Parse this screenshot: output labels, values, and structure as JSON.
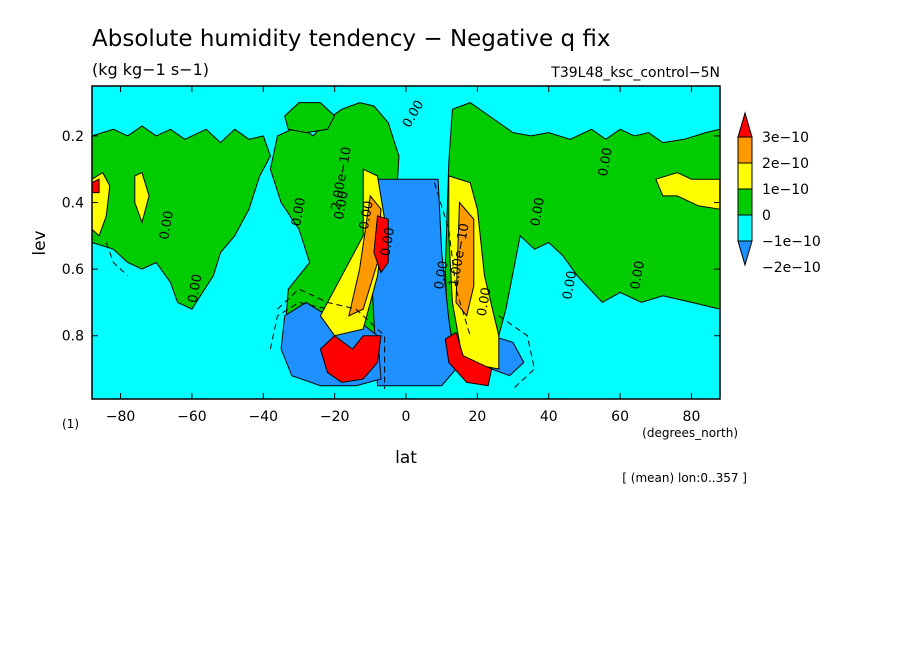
{
  "chart_data": {
    "type": "heatmap",
    "title": "Absolute humidity tendency − Negative q fix",
    "units": "(kg kg−1 s−1)",
    "run_label": "T39L48_ksc_control−5N",
    "xlabel": "lat",
    "xunits": "(degrees_north)",
    "ylabel": "lev",
    "yunits": "(1)",
    "footnote": "[ (mean) lon:0..357 ]",
    "xlim": [
      -88,
      88
    ],
    "ylim": [
      0.05,
      0.99
    ],
    "yaxis_inverted": true,
    "xticks": [
      -80,
      -60,
      -40,
      -20,
      0,
      20,
      40,
      60,
      80
    ],
    "xtick_labels": [
      "−80",
      "−60",
      "−40",
      "−20",
      "0",
      "20",
      "40",
      "60",
      "80"
    ],
    "yticks": [
      0.2,
      0.4,
      0.6,
      0.8
    ],
    "ytick_labels": [
      "0.2",
      "0.4",
      "0.6",
      "0.8"
    ],
    "colorbar": {
      "labels": [
        "3e−10",
        "2e−10",
        "1e−10",
        "0",
        "−1e−10",
        "−2e−10"
      ],
      "colors": [
        "#ff0000",
        "#ff9900",
        "#ffff00",
        "#00cc00",
        "#00ffff",
        "#1e90ff"
      ],
      "extend": "both"
    },
    "contour_labels": [
      "0.00",
      "0.00",
      "0.00",
      "0.00",
      "0.00",
      "0.00",
      "0.00",
      "0.00",
      "0.00",
      "0.00",
      "0.00",
      "0.00",
      "2.00e−10",
      "1.00e−10",
      "0.00"
    ],
    "background_value_color": "#00ffff",
    "regions": [
      {
        "level": "0",
        "lat_range": [
          -88,
          -38
        ],
        "lev_range": [
          0.17,
          0.72
        ],
        "note": "green band of small positive values across southern extratropics"
      },
      {
        "level": "0",
        "lat_range": [
          -35,
          -2
        ],
        "lev_range": [
          0.1,
          0.92
        ],
        "note": "green tropical tongue south"
      },
      {
        "level": "0",
        "lat_range": [
          12,
          88
        ],
        "lev_range": [
          0.1,
          0.72
        ],
        "note": "green band northern extratropics"
      },
      {
        "level": "-2e-10",
        "lat_range": [
          -10,
          10
        ],
        "lev_range": [
          0.32,
          0.95
        ],
        "note": "deep negative column near equator"
      },
      {
        "level": "-2e-10",
        "lat_range": [
          -33,
          -8
        ],
        "lev_range": [
          0.72,
          0.95
        ],
        "note": "negative low-level south"
      },
      {
        "level": "3e-10",
        "lat_range": [
          -22,
          -7
        ],
        "lev_range": [
          0.8,
          0.94
        ],
        "note": "red maximum south"
      },
      {
        "level": "3e-10",
        "lat_range": [
          11,
          25
        ],
        "lev_range": [
          0.8,
          0.95
        ],
        "note": "red maximum north"
      },
      {
        "level": "3e-10",
        "lat_range": [
          -9,
          -5
        ],
        "lev_range": [
          0.43,
          0.6
        ],
        "note": "red mid-level south"
      }
    ]
  }
}
